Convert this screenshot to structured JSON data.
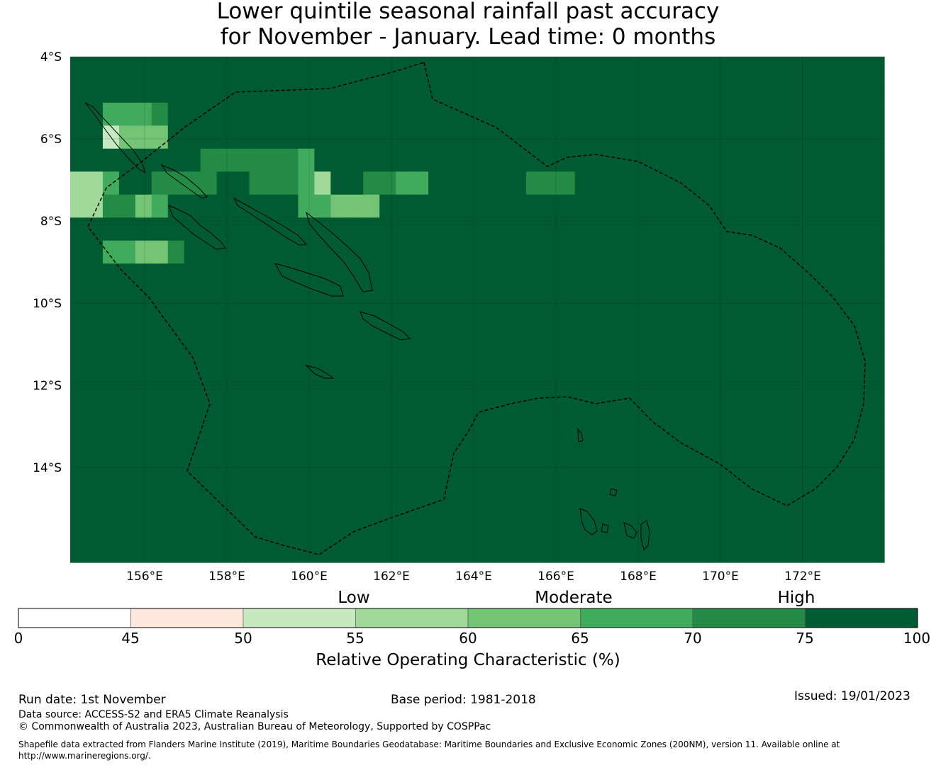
{
  "title": {
    "line1": "Lower quintile seasonal rainfall past accuracy",
    "line2": "for November - January. Lead time: 0 months"
  },
  "map": {
    "lat_labels": [
      "4°S",
      "6°S",
      "8°S",
      "10°S",
      "12°S",
      "14°S"
    ],
    "lon_labels": [
      "156°E",
      "158°E",
      "160°E",
      "162°E",
      "164°E",
      "166°E",
      "168°E",
      "170°E",
      "172°E"
    ],
    "palette": [
      "#ffffff",
      "#fee8de",
      "#c7e9c0",
      "#a1d99b",
      "#74c476",
      "#41ab5d",
      "#238b45",
      "#005a32"
    ],
    "grid_rows": [
      "77777777777777777777777777777777777777777777777777",
      "77777777777777777777777777777777777777777777777777",
      "77555677777777777777777777777777777777777777777777",
      "77244477777777777777777777777777777777777777777777",
      "77777777666666577777777777777777777777777777777777",
      "33577666677666537766557777776667777777777777777777",
      "33664577777777554447777777777777777777777777777777",
      "77777777777777777777777777777777777777777777777777",
      "77554467777777777777777777777777777777777777777777",
      "77777777777777777777777777777777777777777777777777",
      "77777777777777777777777777777777777777777777777777",
      "77777777777777777777777777777777777777777777777777",
      "77777777777777777777777777777777777777777777777777",
      "77777777777777777777777777777777777777777777777777",
      "77777777777777777777777777777777777777777777777777",
      "77777777777777777777777777777777777777777777777777",
      "77777777777777777777777777777777777777777777777777",
      "77777777777777777777777777777777777777777777777777",
      "77777777777777777777777777777777777777777777777777",
      "77777777777777777777777777777777777777777777777777",
      "77777777777777777777777777777777777777777777777777",
      "77777777777777777777777777777777777777777777777777"
    ]
  },
  "colorbar": {
    "category_labels": [
      "Low",
      "Moderate",
      "High"
    ],
    "tick_labels": [
      "0",
      "45",
      "50",
      "55",
      "60",
      "65",
      "70",
      "75",
      "100"
    ],
    "colors": [
      "#ffffff",
      "#fee8de",
      "#c7e9c0",
      "#a1d99b",
      "#74c476",
      "#41ab5d",
      "#238b45",
      "#005a32"
    ],
    "title": "Relative Operating Characteristic (%)"
  },
  "footer": {
    "run_date": "Run date: 1st November",
    "base_period": "Base period: 1981-2018",
    "issued": "Issued: 19/01/2023",
    "data_source": "Data source: ACCESS-S2 and ERA5 Climate Reanalysis",
    "copyright": "© Commonwealth of Australia 2023, Australian Bureau of Meteorology, Supported by COSPPac",
    "shapefile": "Shapefile data extracted from Flanders Marine Institute (2019), Maritime Boundaries Geodatabase: Maritime Boundaries and Exclusive Economic Zones (200NM), version 11. Available online at http://www.marineregions.org/."
  }
}
